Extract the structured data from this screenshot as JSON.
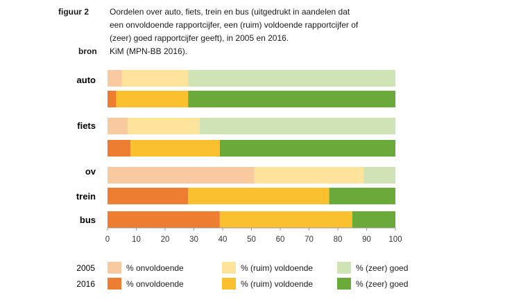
{
  "header": {
    "figure_label": "figuur 2",
    "title": "Oordelen over auto, fiets, trein en bus (uitgedrukt in aandelen dat een onvoldoende rapportcijfer, een (ruim) voldoende rapportcijfer of (zeer) goed rapportcijfer geeft), in 2005 en 2016.",
    "source_label": "bron",
    "source_text": "KiM (MPN-BB 2016)."
  },
  "chart_data": {
    "type": "bar",
    "orientation": "horizontal",
    "stacked": true,
    "xlim": [
      0,
      100
    ],
    "xticks": [
      0,
      10,
      20,
      30,
      40,
      50,
      60,
      70,
      80,
      90,
      100
    ],
    "segments": [
      "% onvoldoende",
      "% (ruim) voldoende",
      "% (zeer) goed"
    ],
    "groups": [
      {
        "label": "auto",
        "bars": [
          {
            "year": "2005",
            "values": [
              5,
              23,
              72
            ]
          },
          {
            "year": "2016",
            "values": [
              3,
              25,
              72
            ]
          }
        ]
      },
      {
        "label": "fiets",
        "bars": [
          {
            "year": "2005",
            "values": [
              7,
              25,
              68
            ]
          },
          {
            "year": "2016",
            "values": [
              8,
              31,
              61
            ]
          }
        ]
      },
      {
        "label": "ov",
        "bars": [
          {
            "year": "2005",
            "values": [
              51,
              38,
              11
            ]
          }
        ]
      },
      {
        "label": "trein",
        "bars": [
          {
            "year": "2016",
            "values": [
              28,
              49,
              23
            ]
          }
        ]
      },
      {
        "label": "bus",
        "bars": [
          {
            "year": "2016",
            "values": [
              39,
              46,
              15
            ]
          }
        ]
      }
    ],
    "legend": [
      {
        "year": "2005",
        "items": [
          {
            "label": "% onvoldoende",
            "color": "#f9c9a0"
          },
          {
            "label": "% (ruim) voldoende",
            "color": "#fde49a"
          },
          {
            "label": "% (zeer) goed",
            "color": "#cfe3b5"
          }
        ]
      },
      {
        "year": "2016",
        "items": [
          {
            "label": "% onvoldoende",
            "color": "#ed7d31"
          },
          {
            "label": "% (ruim) voldoende",
            "color": "#fbc02d"
          },
          {
            "label": "% (zeer) goed",
            "color": "#6aaa3a"
          }
        ]
      }
    ],
    "colors": {
      "2005": [
        "#f9c9a0",
        "#fde49a",
        "#cfe3b5"
      ],
      "2016": [
        "#ed7d31",
        "#fbc02d",
        "#6aaa3a"
      ]
    },
    "grid": false,
    "legend_position": "bottom"
  }
}
